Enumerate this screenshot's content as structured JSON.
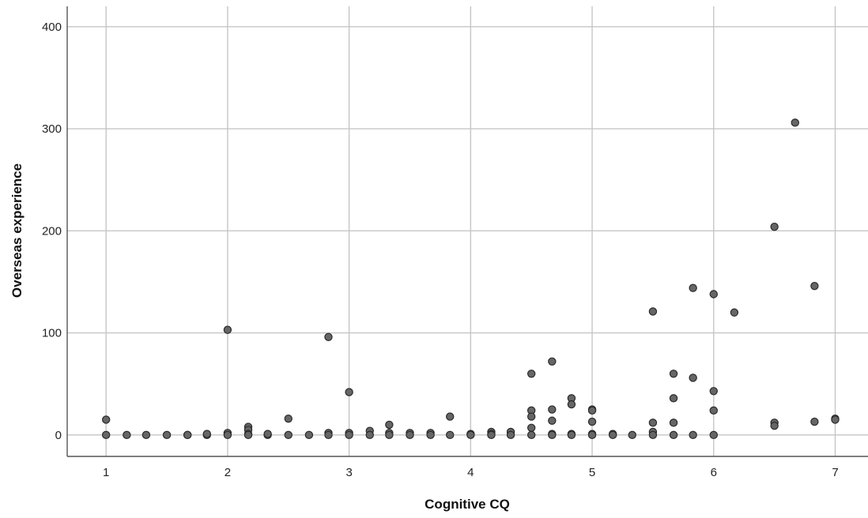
{
  "chart_data": {
    "type": "scatter",
    "title": "",
    "xlabel": "Cognitive CQ",
    "ylabel": "Overseas experience",
    "xlim": [
      0.68,
      7.27
    ],
    "ylim": [
      -21,
      420
    ],
    "xticks": [
      "1",
      "2",
      "3",
      "4",
      "5",
      "6",
      "7"
    ],
    "yticks": [
      "0",
      "100",
      "200",
      "300",
      "400"
    ],
    "grid": true,
    "point_color": "#666666",
    "series": [
      {
        "points": [
          {
            "x": 1.0,
            "y": 15
          },
          {
            "x": 1.0,
            "y": 0
          },
          {
            "x": 1.17,
            "y": 0
          },
          {
            "x": 1.33,
            "y": 0
          },
          {
            "x": 1.5,
            "y": 0
          },
          {
            "x": 1.67,
            "y": 0
          },
          {
            "x": 1.67,
            "y": 0
          },
          {
            "x": 1.83,
            "y": 0
          },
          {
            "x": 1.83,
            "y": 1
          },
          {
            "x": 2.0,
            "y": 103
          },
          {
            "x": 2.0,
            "y": 2
          },
          {
            "x": 2.0,
            "y": 0
          },
          {
            "x": 2.17,
            "y": 8
          },
          {
            "x": 2.17,
            "y": 5
          },
          {
            "x": 2.17,
            "y": 1
          },
          {
            "x": 2.17,
            "y": 0
          },
          {
            "x": 2.33,
            "y": 0
          },
          {
            "x": 2.33,
            "y": 1
          },
          {
            "x": 2.5,
            "y": 16
          },
          {
            "x": 2.5,
            "y": 0
          },
          {
            "x": 2.67,
            "y": 0
          },
          {
            "x": 2.83,
            "y": 96
          },
          {
            "x": 2.83,
            "y": 2
          },
          {
            "x": 2.83,
            "y": 0
          },
          {
            "x": 3.0,
            "y": 42
          },
          {
            "x": 3.0,
            "y": 2
          },
          {
            "x": 3.0,
            "y": 0
          },
          {
            "x": 3.17,
            "y": 4
          },
          {
            "x": 3.17,
            "y": 0
          },
          {
            "x": 3.33,
            "y": 10
          },
          {
            "x": 3.33,
            "y": 2
          },
          {
            "x": 3.33,
            "y": 0
          },
          {
            "x": 3.5,
            "y": 2
          },
          {
            "x": 3.5,
            "y": 0
          },
          {
            "x": 3.67,
            "y": 2
          },
          {
            "x": 3.67,
            "y": 0
          },
          {
            "x": 3.83,
            "y": 18
          },
          {
            "x": 3.83,
            "y": 0
          },
          {
            "x": 4.0,
            "y": 1
          },
          {
            "x": 4.0,
            "y": 0
          },
          {
            "x": 4.17,
            "y": 3
          },
          {
            "x": 4.17,
            "y": 1
          },
          {
            "x": 4.17,
            "y": 0
          },
          {
            "x": 4.33,
            "y": 3
          },
          {
            "x": 4.33,
            "y": 0
          },
          {
            "x": 4.5,
            "y": 60
          },
          {
            "x": 4.5,
            "y": 24
          },
          {
            "x": 4.5,
            "y": 18
          },
          {
            "x": 4.5,
            "y": 7
          },
          {
            "x": 4.5,
            "y": 0
          },
          {
            "x": 4.67,
            "y": 72
          },
          {
            "x": 4.67,
            "y": 25
          },
          {
            "x": 4.67,
            "y": 14
          },
          {
            "x": 4.67,
            "y": 1
          },
          {
            "x": 4.67,
            "y": 0
          },
          {
            "x": 4.83,
            "y": 36
          },
          {
            "x": 4.83,
            "y": 30
          },
          {
            "x": 4.83,
            "y": 1
          },
          {
            "x": 4.83,
            "y": 0
          },
          {
            "x": 5.0,
            "y": 25
          },
          {
            "x": 5.0,
            "y": 24
          },
          {
            "x": 5.0,
            "y": 13
          },
          {
            "x": 5.0,
            "y": 1
          },
          {
            "x": 5.0,
            "y": 0
          },
          {
            "x": 5.17,
            "y": 1
          },
          {
            "x": 5.17,
            "y": 0
          },
          {
            "x": 5.33,
            "y": 0
          },
          {
            "x": 5.5,
            "y": 121
          },
          {
            "x": 5.5,
            "y": 12
          },
          {
            "x": 5.5,
            "y": 3
          },
          {
            "x": 5.5,
            "y": 0
          },
          {
            "x": 5.67,
            "y": 60
          },
          {
            "x": 5.67,
            "y": 36
          },
          {
            "x": 5.67,
            "y": 12
          },
          {
            "x": 5.67,
            "y": 0
          },
          {
            "x": 5.83,
            "y": 144
          },
          {
            "x": 5.83,
            "y": 56
          },
          {
            "x": 5.83,
            "y": 0
          },
          {
            "x": 6.0,
            "y": 138
          },
          {
            "x": 6.0,
            "y": 43
          },
          {
            "x": 6.0,
            "y": 24
          },
          {
            "x": 6.0,
            "y": 0
          },
          {
            "x": 6.17,
            "y": 120
          },
          {
            "x": 6.5,
            "y": 204
          },
          {
            "x": 6.5,
            "y": 12
          },
          {
            "x": 6.5,
            "y": 9
          },
          {
            "x": 6.67,
            "y": 306
          },
          {
            "x": 6.83,
            "y": 146
          },
          {
            "x": 6.83,
            "y": 13
          },
          {
            "x": 7.0,
            "y": 16
          },
          {
            "x": 7.0,
            "y": 15
          }
        ]
      }
    ]
  }
}
